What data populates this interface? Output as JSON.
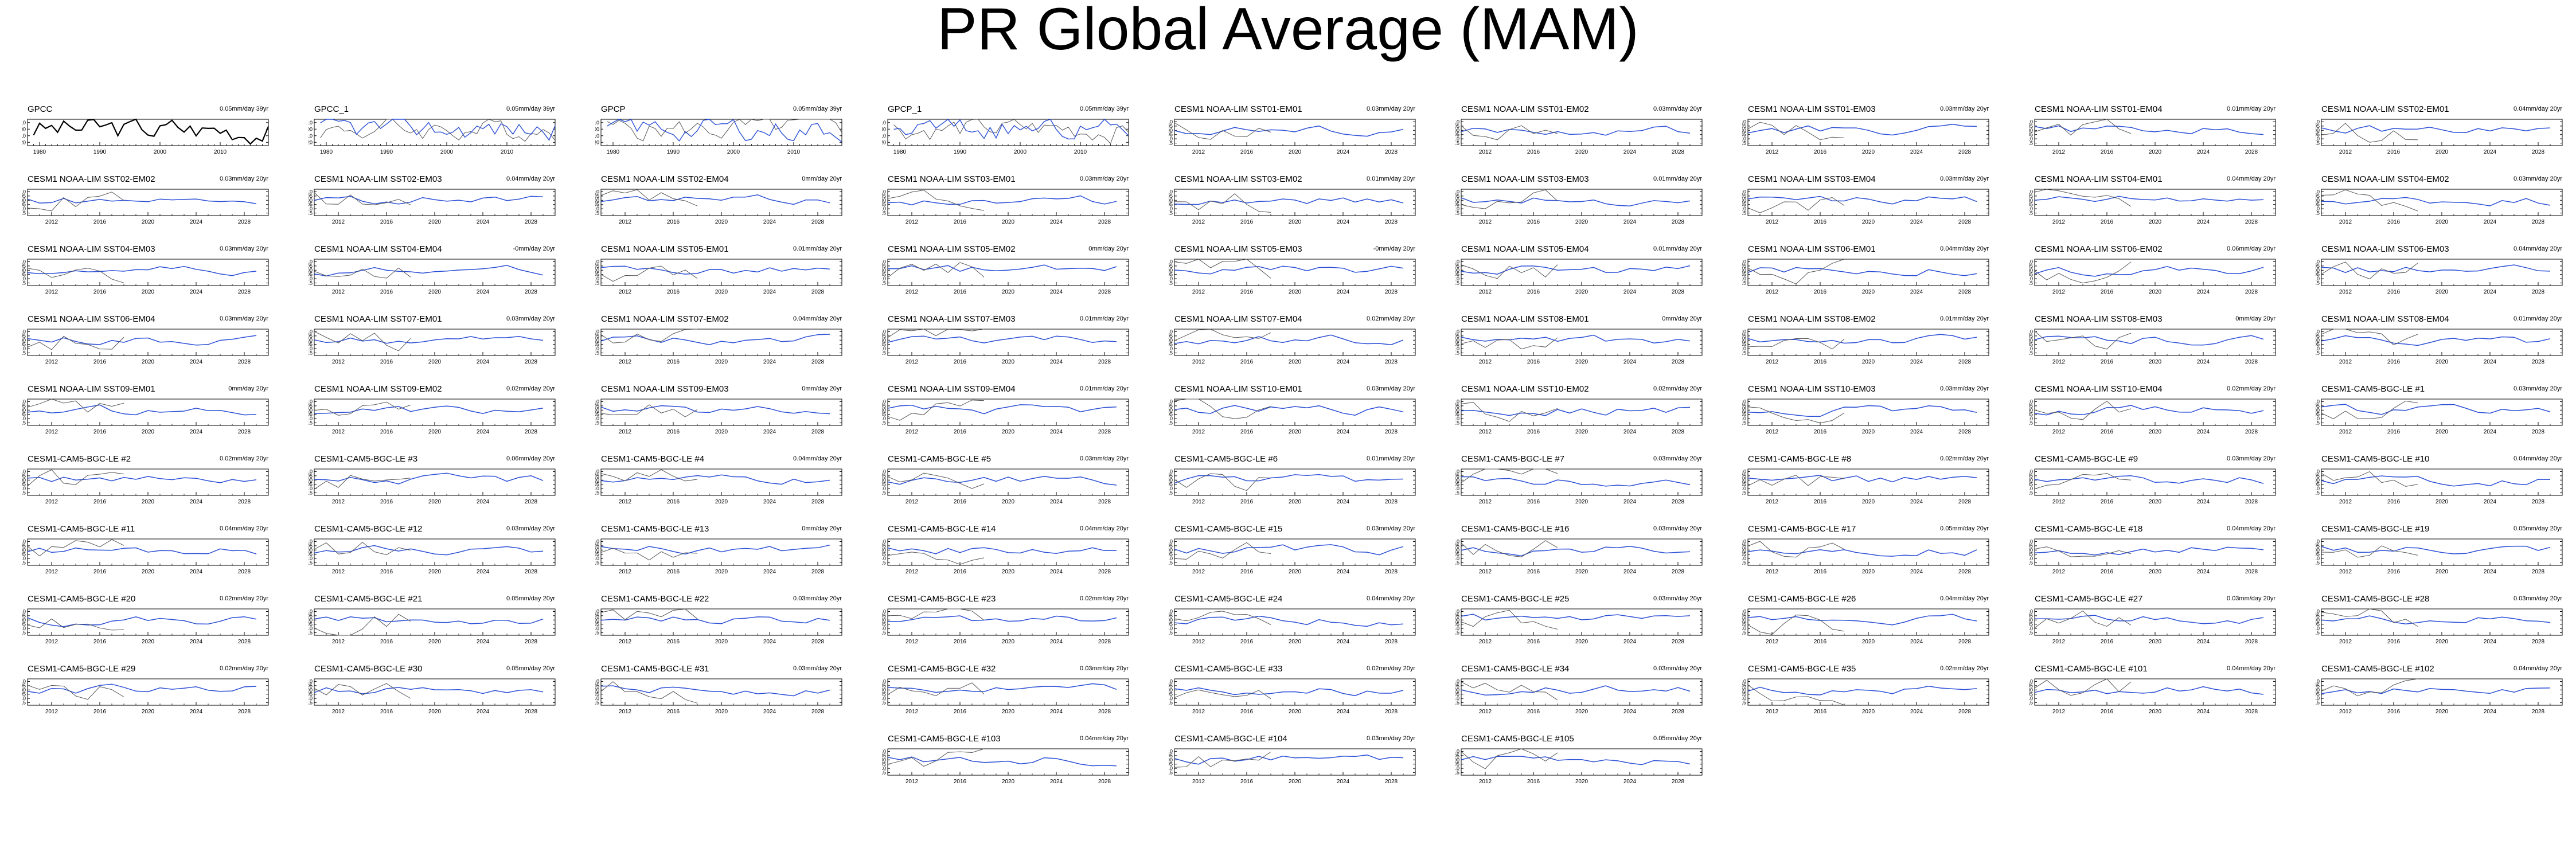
{
  "title": "PR Global Average (MAM)",
  "colors": {
    "observed": "#000000",
    "model": "#2b4fd6",
    "reference": "#555555"
  },
  "obs_years": [
    1980,
    1990,
    2000,
    2010
  ],
  "fc_years": [
    2012,
    2016,
    2020,
    2024,
    2028
  ],
  "yticks_obs": [
    "0.10",
    "0.00",
    "-0.10",
    "-0.20"
  ],
  "yticks_model": [
    "0.10",
    "0.05",
    "0.00",
    "-0.05",
    "-0.10",
    "-0.15"
  ],
  "chart_data": {
    "type": "line",
    "xlabel": "",
    "ylabel": "",
    "panels": [
      {
        "name": "GPCC",
        "trend": "0.05mm/day 39yr",
        "kind": "obs-black",
        "xlim": [
          1978,
          2018
        ],
        "ylim": [
          -0.25,
          0.15
        ],
        "x_ticks": [
          1980,
          1990,
          2000,
          2010
        ]
      },
      {
        "name": "GPCC_1",
        "trend": "0.05mm/day 39yr",
        "kind": "obs",
        "xlim": [
          1978,
          2018
        ],
        "ylim": [
          -0.25,
          0.15
        ],
        "x_ticks": [
          1980,
          1990,
          2000,
          2010
        ]
      },
      {
        "name": "GPCP",
        "trend": "0.05mm/day 39yr",
        "kind": "obs",
        "xlim": [
          1978,
          2018
        ],
        "ylim": [
          -0.25,
          0.15
        ],
        "x_ticks": [
          1980,
          1990,
          2000,
          2010
        ]
      },
      {
        "name": "GPCP_1",
        "trend": "0.05mm/day 39yr",
        "kind": "obs",
        "xlim": [
          1978,
          2018
        ],
        "ylim": [
          -0.25,
          0.15
        ],
        "x_ticks": [
          1980,
          1990,
          2000,
          2010
        ]
      },
      {
        "name": "CESM1 NOAA-LIM SST01-EM01",
        "trend": "0.03mm/day 20yr"
      },
      {
        "name": "CESM1 NOAA-LIM SST01-EM02",
        "trend": "0.03mm/day 20yr"
      },
      {
        "name": "CESM1 NOAA-LIM SST01-EM03",
        "trend": "0.03mm/day 20yr"
      },
      {
        "name": "CESM1 NOAA-LIM SST01-EM04",
        "trend": "0.01mm/day 20yr"
      },
      {
        "name": "CESM1 NOAA-LIM SST02-EM01",
        "trend": "0.04mm/day 20yr"
      },
      {
        "name": "CESM1 NOAA-LIM SST02-EM02",
        "trend": "0.03mm/day 20yr"
      },
      {
        "name": "CESM1 NOAA-LIM SST02-EM03",
        "trend": "0.04mm/day 20yr"
      },
      {
        "name": "CESM1 NOAA-LIM SST02-EM04",
        "trend": "0mm/day 20yr"
      },
      {
        "name": "CESM1 NOAA-LIM SST03-EM01",
        "trend": "0.03mm/day 20yr"
      },
      {
        "name": "CESM1 NOAA-LIM SST03-EM02",
        "trend": "0.01mm/day 20yr"
      },
      {
        "name": "CESM1 NOAA-LIM SST03-EM03",
        "trend": "0.01mm/day 20yr"
      },
      {
        "name": "CESM1 NOAA-LIM SST03-EM04",
        "trend": "0.03mm/day 20yr"
      },
      {
        "name": "CESM1 NOAA-LIM SST04-EM01",
        "trend": "0.04mm/day 20yr"
      },
      {
        "name": "CESM1 NOAA-LIM SST04-EM02",
        "trend": "0.03mm/day 20yr"
      },
      {
        "name": "CESM1 NOAA-LIM SST04-EM03",
        "trend": "0.03mm/day 20yr"
      },
      {
        "name": "CESM1 NOAA-LIM SST04-EM04",
        "trend": "-0mm/day 20yr"
      },
      {
        "name": "CESM1 NOAA-LIM SST05-EM01",
        "trend": "0.01mm/day 20yr"
      },
      {
        "name": "CESM1 NOAA-LIM SST05-EM02",
        "trend": "0mm/day 20yr"
      },
      {
        "name": "CESM1 NOAA-LIM SST05-EM03",
        "trend": "-0mm/day 20yr"
      },
      {
        "name": "CESM1 NOAA-LIM SST05-EM04",
        "trend": "0.01mm/day 20yr"
      },
      {
        "name": "CESM1 NOAA-LIM SST06-EM01",
        "trend": "0.04mm/day 20yr"
      },
      {
        "name": "CESM1 NOAA-LIM SST06-EM02",
        "trend": "0.06mm/day 20yr"
      },
      {
        "name": "CESM1 NOAA-LIM SST06-EM03",
        "trend": "0.04mm/day 20yr"
      },
      {
        "name": "CESM1 NOAA-LIM SST06-EM04",
        "trend": "0.03mm/day 20yr"
      },
      {
        "name": "CESM1 NOAA-LIM SST07-EM01",
        "trend": "0.03mm/day 20yr"
      },
      {
        "name": "CESM1 NOAA-LIM SST07-EM02",
        "trend": "0.04mm/day 20yr"
      },
      {
        "name": "CESM1 NOAA-LIM SST07-EM03",
        "trend": "0.01mm/day 20yr"
      },
      {
        "name": "CESM1 NOAA-LIM SST07-EM04",
        "trend": "0.02mm/day 20yr"
      },
      {
        "name": "CESM1 NOAA-LIM SST08-EM01",
        "trend": "0mm/day 20yr"
      },
      {
        "name": "CESM1 NOAA-LIM SST08-EM02",
        "trend": "0.01mm/day 20yr"
      },
      {
        "name": "CESM1 NOAA-LIM SST08-EM03",
        "trend": "0mm/day 20yr"
      },
      {
        "name": "CESM1 NOAA-LIM SST08-EM04",
        "trend": "0.01mm/day 20yr"
      },
      {
        "name": "CESM1 NOAA-LIM SST09-EM01",
        "trend": "0mm/day 20yr"
      },
      {
        "name": "CESM1 NOAA-LIM SST09-EM02",
        "trend": "0.02mm/day 20yr"
      },
      {
        "name": "CESM1 NOAA-LIM SST09-EM03",
        "trend": "0mm/day 20yr"
      },
      {
        "name": "CESM1 NOAA-LIM SST09-EM04",
        "trend": "0.01mm/day 20yr"
      },
      {
        "name": "CESM1 NOAA-LIM SST10-EM01",
        "trend": "0.03mm/day 20yr"
      },
      {
        "name": "CESM1 NOAA-LIM SST10-EM02",
        "trend": "0.02mm/day 20yr"
      },
      {
        "name": "CESM1 NOAA-LIM SST10-EM03",
        "trend": "0.03mm/day 20yr"
      },
      {
        "name": "CESM1 NOAA-LIM SST10-EM04",
        "trend": "0.02mm/day 20yr"
      },
      {
        "name": "CESM1-CAM5-BGC-LE #1",
        "trend": "0.03mm/day 20yr"
      },
      {
        "name": "CESM1-CAM5-BGC-LE #2",
        "trend": "0.02mm/day 20yr"
      },
      {
        "name": "CESM1-CAM5-BGC-LE #3",
        "trend": "0.06mm/day 20yr"
      },
      {
        "name": "CESM1-CAM5-BGC-LE #4",
        "trend": "0.04mm/day 20yr"
      },
      {
        "name": "CESM1-CAM5-BGC-LE #5",
        "trend": "0.03mm/day 20yr"
      },
      {
        "name": "CESM1-CAM5-BGC-LE #6",
        "trend": "0.01mm/day 20yr"
      },
      {
        "name": "CESM1-CAM5-BGC-LE #7",
        "trend": "0.03mm/day 20yr"
      },
      {
        "name": "CESM1-CAM5-BGC-LE #8",
        "trend": "0.02mm/day 20yr"
      },
      {
        "name": "CESM1-CAM5-BGC-LE #9",
        "trend": "0.03mm/day 20yr"
      },
      {
        "name": "CESM1-CAM5-BGC-LE #10",
        "trend": "0.04mm/day 20yr"
      },
      {
        "name": "CESM1-CAM5-BGC-LE #11",
        "trend": "0.04mm/day 20yr"
      },
      {
        "name": "CESM1-CAM5-BGC-LE #12",
        "trend": "0.03mm/day 20yr"
      },
      {
        "name": "CESM1-CAM5-BGC-LE #13",
        "trend": "0mm/day 20yr"
      },
      {
        "name": "CESM1-CAM5-BGC-LE #14",
        "trend": "0.04mm/day 20yr"
      },
      {
        "name": "CESM1-CAM5-BGC-LE #15",
        "trend": "0.03mm/day 20yr"
      },
      {
        "name": "CESM1-CAM5-BGC-LE #16",
        "trend": "0.03mm/day 20yr"
      },
      {
        "name": "CESM1-CAM5-BGC-LE #17",
        "trend": "0.05mm/day 20yr"
      },
      {
        "name": "CESM1-CAM5-BGC-LE #18",
        "trend": "0.04mm/day 20yr"
      },
      {
        "name": "CESM1-CAM5-BGC-LE #19",
        "trend": "0.05mm/day 20yr"
      },
      {
        "name": "CESM1-CAM5-BGC-LE #20",
        "trend": "0.02mm/day 20yr"
      },
      {
        "name": "CESM1-CAM5-BGC-LE #21",
        "trend": "0.05mm/day 20yr"
      },
      {
        "name": "CESM1-CAM5-BGC-LE #22",
        "trend": "0.03mm/day 20yr"
      },
      {
        "name": "CESM1-CAM5-BGC-LE #23",
        "trend": "0.02mm/day 20yr"
      },
      {
        "name": "CESM1-CAM5-BGC-LE #24",
        "trend": "0.04mm/day 20yr"
      },
      {
        "name": "CESM1-CAM5-BGC-LE #25",
        "trend": "0.03mm/day 20yr"
      },
      {
        "name": "CESM1-CAM5-BGC-LE #26",
        "trend": "0.04mm/day 20yr"
      },
      {
        "name": "CESM1-CAM5-BGC-LE #27",
        "trend": "0.03mm/day 20yr"
      },
      {
        "name": "CESM1-CAM5-BGC-LE #28",
        "trend": "0.03mm/day 20yr"
      },
      {
        "name": "CESM1-CAM5-BGC-LE #29",
        "trend": "0.02mm/day 20yr"
      },
      {
        "name": "CESM1-CAM5-BGC-LE #30",
        "trend": "0.05mm/day 20yr"
      },
      {
        "name": "CESM1-CAM5-BGC-LE #31",
        "trend": "0.03mm/day 20yr"
      },
      {
        "name": "CESM1-CAM5-BGC-LE #32",
        "trend": "0.03mm/day 20yr"
      },
      {
        "name": "CESM1-CAM5-BGC-LE #33",
        "trend": "0.02mm/day 20yr"
      },
      {
        "name": "CESM1-CAM5-BGC-LE #34",
        "trend": "0.03mm/day 20yr"
      },
      {
        "name": "CESM1-CAM5-BGC-LE #35",
        "trend": "0.02mm/day 20yr"
      },
      {
        "name": "CESM1-CAM5-BGC-LE #101",
        "trend": "0.04mm/day 20yr"
      },
      {
        "name": "CESM1-CAM5-BGC-LE #102",
        "trend": "0.04mm/day 20yr"
      },
      {
        "name": "CESM1-CAM5-BGC-LE #103",
        "trend": "0.04mm/day 20yr"
      },
      {
        "name": "CESM1-CAM5-BGC-LE #104",
        "trend": "0.03mm/day 20yr"
      },
      {
        "name": "CESM1-CAM5-BGC-LE #105",
        "trend": "0.05mm/day 20yr"
      }
    ],
    "model_panel_defaults": {
      "kind": "forecast",
      "xlim": [
        2010,
        2030
      ],
      "ylim": [
        -0.18,
        0.13
      ],
      "x_ticks": [
        2012,
        2016,
        2020,
        2024,
        2028
      ]
    },
    "reference_series_note": "grey observed segment overlaid 2010-2018"
  }
}
